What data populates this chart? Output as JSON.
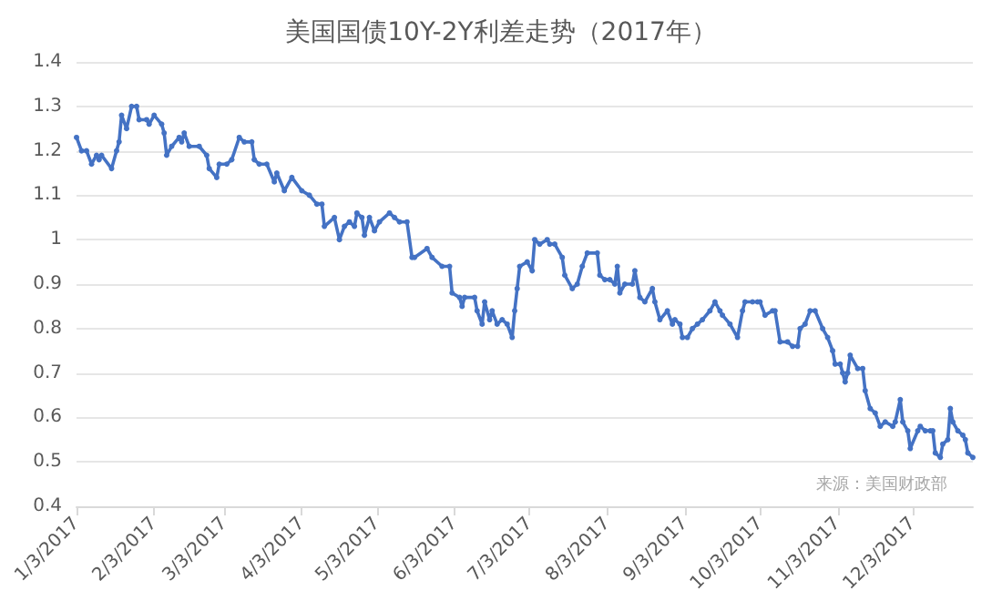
{
  "chart_data": {
    "type": "line",
    "title": "美国国债10Y-2Y利差走势（2017年）",
    "annotations": [
      "来源：美国财政部"
    ],
    "x": [
      "2017-01-03",
      "2017-01-05",
      "2017-01-07",
      "2017-01-09",
      "2017-01-11",
      "2017-01-12",
      "2017-01-13",
      "2017-01-17",
      "2017-01-19",
      "2017-01-20",
      "2017-01-21",
      "2017-01-23",
      "2017-01-25",
      "2017-01-27",
      "2017-01-28",
      "2017-01-31",
      "2017-02-01",
      "2017-02-03",
      "2017-02-06",
      "2017-02-07",
      "2017-02-08",
      "2017-02-10",
      "2017-02-13",
      "2017-02-14",
      "2017-02-15",
      "2017-02-17",
      "2017-02-21",
      "2017-02-24",
      "2017-02-25",
      "2017-02-28",
      "2017-03-01",
      "2017-03-04",
      "2017-03-06",
      "2017-03-09",
      "2017-03-11",
      "2017-03-14",
      "2017-03-15",
      "2017-03-17",
      "2017-03-20",
      "2017-03-23",
      "2017-03-24",
      "2017-03-27",
      "2017-03-30",
      "2017-04-03",
      "2017-04-06",
      "2017-04-09",
      "2017-04-11",
      "2017-04-12",
      "2017-04-16",
      "2017-04-18",
      "2017-04-20",
      "2017-04-22",
      "2017-04-24",
      "2017-04-25",
      "2017-04-27",
      "2017-04-28",
      "2017-04-30",
      "2017-05-02",
      "2017-05-04",
      "2017-05-08",
      "2017-05-10",
      "2017-05-12",
      "2017-05-15",
      "2017-05-17",
      "2017-05-18",
      "2017-05-23",
      "2017-05-25",
      "2017-05-29",
      "2017-06-01",
      "2017-06-02",
      "2017-06-05",
      "2017-06-06",
      "2017-06-07",
      "2017-06-11",
      "2017-06-12",
      "2017-06-14",
      "2017-06-15",
      "2017-06-17",
      "2017-06-18",
      "2017-06-20",
      "2017-06-22",
      "2017-06-24",
      "2017-06-26",
      "2017-06-27",
      "2017-06-28",
      "2017-06-29",
      "2017-07-02",
      "2017-07-04",
      "2017-07-05",
      "2017-07-07",
      "2017-07-10",
      "2017-07-11",
      "2017-07-13",
      "2017-07-16",
      "2017-07-17",
      "2017-07-20",
      "2017-07-22",
      "2017-07-24",
      "2017-07-26",
      "2017-07-30",
      "2017-07-31",
      "2017-08-02",
      "2017-08-04",
      "2017-08-06",
      "2017-08-07",
      "2017-08-08",
      "2017-08-10",
      "2017-08-13",
      "2017-08-14",
      "2017-08-16",
      "2017-08-18",
      "2017-08-21",
      "2017-08-22",
      "2017-08-24",
      "2017-08-27",
      "2017-08-29",
      "2017-08-30",
      "2017-09-01",
      "2017-09-02",
      "2017-09-04",
      "2017-09-06",
      "2017-09-08",
      "2017-09-10",
      "2017-09-13",
      "2017-09-15",
      "2017-09-17",
      "2017-09-18",
      "2017-09-21",
      "2017-09-24",
      "2017-09-26",
      "2017-09-27",
      "2017-09-30",
      "2017-10-02",
      "2017-10-03",
      "2017-10-05",
      "2017-10-08",
      "2017-10-09",
      "2017-10-11",
      "2017-10-14",
      "2017-10-16",
      "2017-10-18",
      "2017-10-19",
      "2017-10-21",
      "2017-10-23",
      "2017-10-25",
      "2017-10-28",
      "2017-10-30",
      "2017-11-01",
      "2017-11-02",
      "2017-11-04",
      "2017-11-05",
      "2017-11-06",
      "2017-11-07",
      "2017-11-08",
      "2017-11-11",
      "2017-11-13",
      "2017-11-14",
      "2017-11-16",
      "2017-11-18",
      "2017-11-20",
      "2017-11-22",
      "2017-11-25",
      "2017-11-26",
      "2017-11-28",
      "2017-11-29",
      "2017-12-01",
      "2017-12-02",
      "2017-12-05",
      "2017-12-06",
      "2017-12-08",
      "2017-12-10",
      "2017-12-11",
      "2017-12-12",
      "2017-12-14",
      "2017-12-15",
      "2017-12-17",
      "2017-12-18",
      "2017-12-19",
      "2017-12-21",
      "2017-12-23",
      "2017-12-24",
      "2017-12-25",
      "2017-12-27"
    ],
    "series": [
      {
        "color": "#4472c4",
        "values": [
          1.23,
          1.2,
          1.2,
          1.17,
          1.19,
          1.18,
          1.19,
          1.16,
          1.2,
          1.22,
          1.28,
          1.25,
          1.3,
          1.3,
          1.27,
          1.27,
          1.26,
          1.28,
          1.26,
          1.24,
          1.19,
          1.21,
          1.23,
          1.22,
          1.24,
          1.21,
          1.21,
          1.19,
          1.16,
          1.14,
          1.17,
          1.17,
          1.18,
          1.23,
          1.22,
          1.22,
          1.18,
          1.17,
          1.17,
          1.13,
          1.15,
          1.11,
          1.14,
          1.11,
          1.1,
          1.08,
          1.08,
          1.03,
          1.05,
          1.0,
          1.03,
          1.04,
          1.03,
          1.06,
          1.05,
          1.01,
          1.05,
          1.02,
          1.04,
          1.06,
          1.05,
          1.04,
          1.04,
          0.96,
          0.96,
          0.98,
          0.96,
          0.94,
          0.94,
          0.88,
          0.87,
          0.85,
          0.87,
          0.87,
          0.84,
          0.81,
          0.86,
          0.82,
          0.84,
          0.81,
          0.82,
          0.81,
          0.78,
          0.84,
          0.89,
          0.94,
          0.95,
          0.93,
          1.0,
          0.99,
          1.0,
          0.99,
          0.99,
          0.96,
          0.92,
          0.89,
          0.9,
          0.94,
          0.97,
          0.97,
          0.92,
          0.91,
          0.91,
          0.9,
          0.94,
          0.88,
          0.9,
          0.9,
          0.93,
          0.87,
          0.86,
          0.89,
          0.86,
          0.82,
          0.84,
          0.81,
          0.82,
          0.81,
          0.78,
          0.78,
          0.8,
          0.81,
          0.82,
          0.84,
          0.86,
          0.84,
          0.83,
          0.81,
          0.78,
          0.84,
          0.86,
          0.86,
          0.86,
          0.86,
          0.83,
          0.84,
          0.84,
          0.77,
          0.77,
          0.76,
          0.76,
          0.8,
          0.81,
          0.84,
          0.84,
          0.8,
          0.78,
          0.75,
          0.72,
          0.72,
          0.7,
          0.68,
          0.7,
          0.74,
          0.71,
          0.71,
          0.66,
          0.62,
          0.61,
          0.58,
          0.59,
          0.58,
          0.59,
          0.64,
          0.59,
          0.57,
          0.53,
          0.57,
          0.58,
          0.57,
          0.57,
          0.57,
          0.52,
          0.51,
          0.54,
          0.55,
          0.62,
          0.59,
          0.57,
          0.56,
          0.55,
          0.52,
          0.51
        ]
      }
    ],
    "xlim": [
      "2017-01-03",
      "2017-12-27"
    ],
    "xticks": [
      {
        "value": "2017-01-03",
        "label": "1/3/2017"
      },
      {
        "value": "2017-02-03",
        "label": "2/3/2017"
      },
      {
        "value": "2017-03-03",
        "label": "3/3/2017"
      },
      {
        "value": "2017-04-03",
        "label": "4/3/2017"
      },
      {
        "value": "2017-05-03",
        "label": "5/3/2017"
      },
      {
        "value": "2017-06-03",
        "label": "6/3/2017"
      },
      {
        "value": "2017-07-03",
        "label": "7/3/2017"
      },
      {
        "value": "2017-08-03",
        "label": "8/3/2017"
      },
      {
        "value": "2017-09-03",
        "label": "9/3/2017"
      },
      {
        "value": "2017-10-03",
        "label": "10/3/2017"
      },
      {
        "value": "2017-11-03",
        "label": "11/3/2017"
      },
      {
        "value": "2017-12-03",
        "label": "12/3/2017"
      }
    ],
    "ylim": [
      0.4,
      1.4
    ],
    "yticks": [
      0.4,
      0.5,
      0.6,
      0.7,
      0.8,
      0.9,
      1,
      1.1,
      1.2,
      1.3,
      1.4
    ],
    "grid": "y",
    "marker": "circle",
    "line_style": "solid"
  }
}
